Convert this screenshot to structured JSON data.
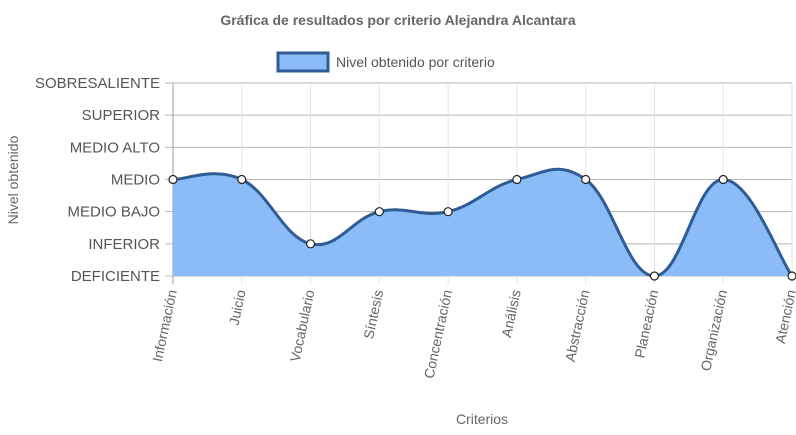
{
  "chart_data": {
    "type": "area",
    "title": "Gráfica de resultados por criterio Alejandra Alcantara",
    "xlabel": "Criterios",
    "ylabel": "Nivel obtenido",
    "y_levels": [
      "DEFICIENTE",
      "INFERIOR",
      "MEDIO BAJO",
      "MEDIO",
      "MEDIO ALTO",
      "SUPERIOR",
      "SOBRESALIENTE"
    ],
    "ylim": [
      0,
      6
    ],
    "categories": [
      "Información",
      "Juicio",
      "Vocabulario",
      "Síntesis",
      "Concentración",
      "Análisis",
      "Abstracción",
      "Planeación",
      "Organización",
      "Atención"
    ],
    "series": [
      {
        "name": "Nivel obtenido por criterio",
        "values": [
          3,
          3,
          1,
          2,
          2,
          3,
          3,
          0,
          3,
          0
        ]
      }
    ],
    "legend": "top",
    "grid": true,
    "colors": {
      "fill": "#8bbcf7",
      "line": "#2f5c94",
      "point_fill": "#ffffff",
      "grid": "#e3e3e3"
    }
  }
}
